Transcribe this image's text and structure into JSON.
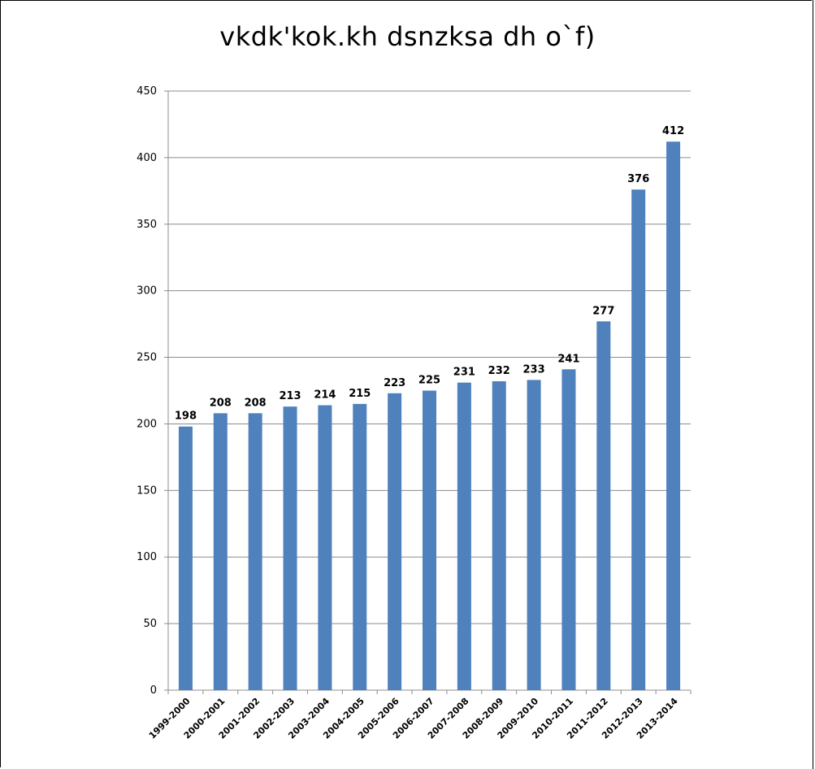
{
  "chart_data": {
    "type": "bar",
    "title": "vkdk'kok.kh dsnzksa dh o`f)",
    "xlabel": "",
    "ylabel": "",
    "ylim": [
      0,
      450
    ],
    "ytick_step": 50,
    "grid": true,
    "legend": "none",
    "bar_color": "#4f81bd",
    "categories": [
      "1999-2000",
      "2000-2001",
      "2001-2002",
      "2002-2003",
      "2003-2004",
      "2004-2005",
      "2005-2006",
      "2006-2007",
      "2007-2008",
      "2008-2009",
      "2009-2010",
      "2010-2011",
      "2011-2012",
      "2012-2013",
      "2013-2014"
    ],
    "values": [
      198,
      208,
      208,
      213,
      214,
      215,
      223,
      225,
      231,
      232,
      233,
      241,
      277,
      376,
      412
    ]
  }
}
